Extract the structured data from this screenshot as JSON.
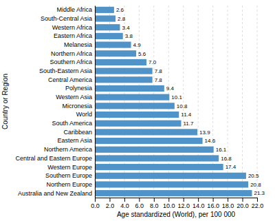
{
  "chart_data": {
    "type": "bar",
    "orientation": "horizontal",
    "categories": [
      "Middle Africa",
      "South-Central Asia",
      "Western Africa",
      "Eastern Africa",
      "Melanesia",
      "Northern Africa",
      "Southern Africa",
      "South-Eastern Asia",
      "Central America",
      "Polynesia",
      "Western Asia",
      "Micronesia",
      "World",
      "South America",
      "Caribbean",
      "Eastern Asia",
      "Northern America",
      "Central and Eastern Europe",
      "Western Europe",
      "Southern Europe",
      "Northern Europe",
      "Australia and New Zealand"
    ],
    "values": [
      2.6,
      2.8,
      3.4,
      3.8,
      4.9,
      5.6,
      7.0,
      7.8,
      7.8,
      9.4,
      10.1,
      10.8,
      11.4,
      11.7,
      13.9,
      14.6,
      16.1,
      16.8,
      17.4,
      20.5,
      20.8,
      21.3
    ],
    "value_labels": [
      "2.6",
      "2.8",
      "3.4",
      "3.8",
      "4.9",
      "5.6",
      "7.0",
      "7.8",
      "7.8",
      "9.4",
      "10.1",
      "10.8",
      "11.4",
      "11.7",
      "13.9",
      "14.6",
      "16.1",
      "16.8",
      "17.4",
      "20.5",
      "20.8",
      "21.3"
    ],
    "data_labels": true,
    "color": "#4f93c8",
    "xlabel": "Age standardized (World),  per 100 000",
    "ylabel": "Country or Region",
    "xlim": [
      0,
      22.0
    ],
    "xticks": [
      {
        "value": 0.0,
        "label": "0.0"
      },
      {
        "value": 2.0,
        "label": "2.0"
      },
      {
        "value": 4.0,
        "label": "4.0"
      },
      {
        "value": 6.0,
        "label": "6.0"
      },
      {
        "value": 8.0,
        "label": "8.0"
      },
      {
        "value": 10.0,
        "label": "10.0"
      },
      {
        "value": 12.0,
        "label": "12.0"
      },
      {
        "value": 14.0,
        "label": "14.0"
      },
      {
        "value": 16.0,
        "label": "16.0"
      },
      {
        "value": 18.0,
        "label": "18.0"
      },
      {
        "value": 20.0,
        "label": "20.0"
      },
      {
        "value": 22.0,
        "label": "22.0"
      }
    ],
    "grid": true
  }
}
